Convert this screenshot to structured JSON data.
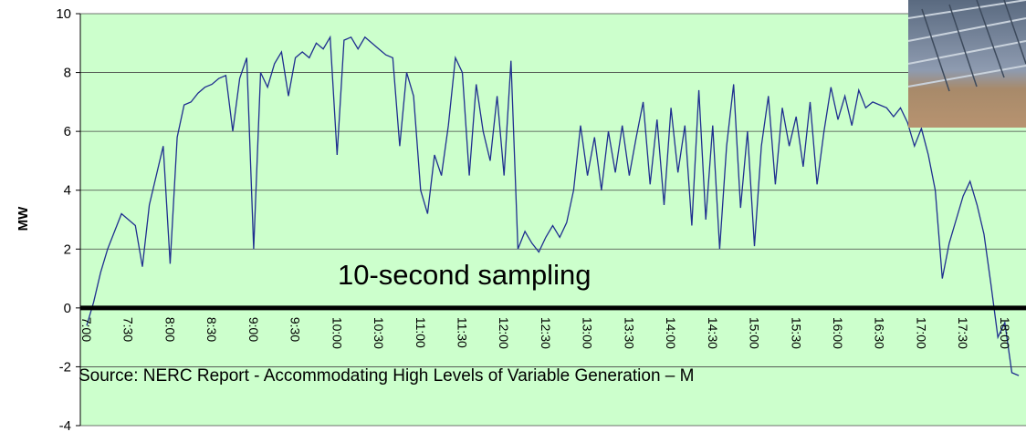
{
  "chart_data": {
    "type": "line",
    "ylabel": "MW",
    "annotations": [
      "10-second sampling",
      "Source: NERC Report - Accommodating High Levels of Variable Generation – M"
    ],
    "categories": [
      "7:00",
      null,
      null,
      null,
      null,
      null,
      "7:30",
      null,
      null,
      null,
      null,
      null,
      "8:00",
      null,
      null,
      null,
      null,
      null,
      "8:30",
      null,
      null,
      null,
      null,
      null,
      "9:00",
      null,
      null,
      null,
      null,
      null,
      "9:30",
      null,
      null,
      null,
      null,
      null,
      "10:00",
      null,
      null,
      null,
      null,
      null,
      "10:30",
      null,
      null,
      null,
      null,
      null,
      "11:00",
      null,
      null,
      null,
      null,
      null,
      "11:30",
      null,
      null,
      null,
      null,
      null,
      "12:00",
      null,
      null,
      null,
      null,
      null,
      "12:30",
      null,
      null,
      null,
      null,
      null,
      "13:00",
      null,
      null,
      null,
      null,
      null,
      "13:30",
      null,
      null,
      null,
      null,
      null,
      "14:00",
      null,
      null,
      null,
      null,
      null,
      "14:30",
      null,
      null,
      null,
      null,
      null,
      "15:00",
      null,
      null,
      null,
      null,
      null,
      "15:30",
      null,
      null,
      null,
      null,
      null,
      "16:00",
      null,
      null,
      null,
      null,
      null,
      "16:30",
      null,
      null,
      null,
      null,
      null,
      "17:00",
      null,
      null,
      null,
      null,
      null,
      "17:30",
      null,
      null,
      null,
      null,
      null,
      "18:00",
      null,
      null
    ],
    "values": [
      -0.6,
      0.2,
      1.2,
      2.0,
      2.6,
      3.2,
      3.0,
      2.8,
      1.4,
      3.5,
      4.5,
      5.5,
      1.5,
      5.8,
      6.9,
      7.0,
      7.3,
      7.5,
      7.6,
      7.8,
      7.9,
      6.0,
      7.8,
      8.5,
      2.0,
      8.0,
      7.5,
      8.3,
      8.7,
      7.2,
      8.5,
      8.7,
      8.5,
      9.0,
      8.8,
      9.2,
      5.2,
      9.1,
      9.2,
      8.8,
      9.2,
      9.0,
      8.8,
      8.6,
      8.5,
      5.5,
      8.0,
      7.2,
      4.0,
      3.2,
      5.2,
      4.5,
      6.2,
      8.5,
      8.0,
      4.5,
      7.6,
      6.0,
      5.0,
      7.2,
      4.5,
      8.4,
      2.0,
      2.6,
      2.2,
      1.9,
      2.4,
      2.8,
      2.4,
      2.9,
      4.0,
      6.2,
      4.5,
      5.8,
      4.0,
      6.0,
      4.6,
      6.2,
      4.5,
      5.8,
      7.0,
      4.2,
      6.4,
      3.5,
      6.8,
      4.6,
      6.2,
      2.8,
      7.4,
      3.0,
      6.2,
      2.0,
      5.5,
      7.6,
      3.4,
      6.0,
      2.1,
      5.5,
      7.2,
      4.2,
      6.8,
      5.5,
      6.5,
      4.8,
      7.0,
      4.2,
      6.0,
      7.5,
      6.4,
      7.2,
      6.2,
      7.4,
      6.8,
      7.0,
      6.9,
      6.8,
      6.5,
      6.8,
      6.3,
      5.5,
      6.1,
      5.2,
      4.0,
      1.0,
      2.2,
      3.0,
      3.8,
      4.3,
      3.5,
      2.5,
      0.8,
      -1.0,
      -0.5,
      -2.2,
      -2.3
    ],
    "color": "#1f2f8f",
    "ylim": [
      -4,
      10
    ],
    "yticks": [
      -4,
      -2,
      0,
      2,
      4,
      6,
      8,
      10
    ],
    "grid": true
  }
}
